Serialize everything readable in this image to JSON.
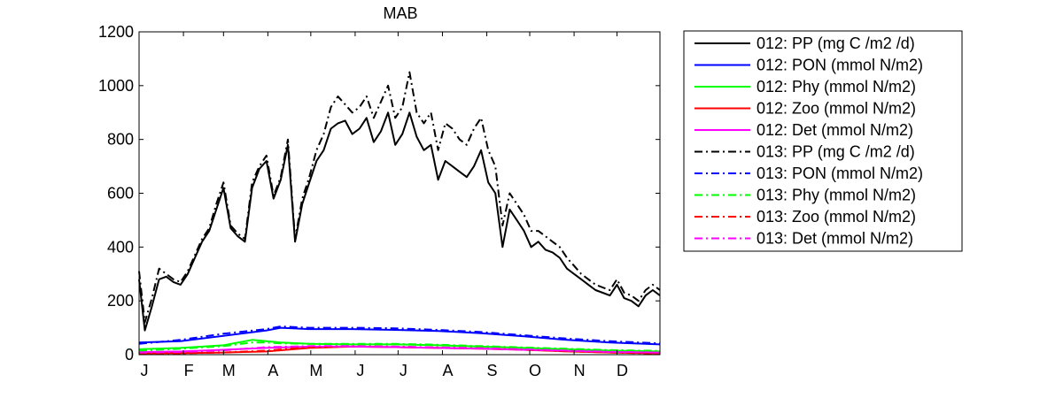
{
  "chart_data": {
    "type": "line",
    "title": "MAB",
    "xlabel": "",
    "ylabel": "",
    "ylim": [
      0,
      1200
    ],
    "yticks": [
      0,
      200,
      400,
      600,
      800,
      1000,
      1200
    ],
    "xlim": [
      1,
      365
    ],
    "month_labels": [
      "J",
      "F",
      "M",
      "A",
      "M",
      "J",
      "J",
      "A",
      "S",
      "O",
      "N",
      "D"
    ],
    "month_starts": [
      1,
      32,
      60,
      91,
      121,
      152,
      182,
      213,
      244,
      274,
      305,
      335
    ],
    "grid": false,
    "legend_position": "outside-right",
    "series": [
      {
        "name": "012: PP (mg C /m2 /d)",
        "color": "#000000",
        "style": "solid",
        "x": [
          1,
          5,
          10,
          15,
          20,
          25,
          30,
          35,
          40,
          45,
          50,
          55,
          60,
          65,
          70,
          75,
          80,
          85,
          90,
          95,
          100,
          105,
          110,
          115,
          120,
          125,
          130,
          135,
          140,
          145,
          150,
          155,
          160,
          165,
          170,
          175,
          180,
          185,
          190,
          195,
          200,
          205,
          210,
          215,
          220,
          225,
          230,
          235,
          240,
          245,
          250,
          255,
          260,
          265,
          270,
          275,
          280,
          285,
          290,
          295,
          300,
          305,
          310,
          315,
          320,
          325,
          330,
          335,
          340,
          345,
          350,
          355,
          360,
          365
        ],
        "y": [
          280,
          90,
          180,
          280,
          290,
          270,
          260,
          300,
          360,
          420,
          460,
          540,
          620,
          470,
          440,
          420,
          620,
          690,
          720,
          580,
          650,
          780,
          420,
          560,
          640,
          720,
          760,
          840,
          860,
          870,
          820,
          840,
          880,
          790,
          830,
          900,
          780,
          820,
          900,
          810,
          760,
          780,
          650,
          720,
          700,
          680,
          660,
          700,
          760,
          640,
          600,
          400,
          540,
          500,
          460,
          400,
          420,
          390,
          380,
          360,
          320,
          300,
          280,
          260,
          240,
          230,
          220,
          260,
          210,
          200,
          180,
          220,
          240,
          220
        ]
      },
      {
        "name": "012: PON (mmol N/m2)",
        "color": "#0000ff",
        "style": "solid",
        "x": [
          1,
          30,
          60,
          90,
          100,
          120,
          150,
          180,
          210,
          240,
          270,
          300,
          330,
          365
        ],
        "y": [
          45,
          50,
          70,
          90,
          100,
          95,
          95,
          92,
          88,
          80,
          68,
          55,
          45,
          38
        ]
      },
      {
        "name": "012: Phy (mmol N/m2)",
        "color": "#00ff00",
        "style": "solid",
        "x": [
          1,
          30,
          60,
          80,
          90,
          100,
          120,
          150,
          180,
          210,
          240,
          270,
          300,
          330,
          365
        ],
        "y": [
          20,
          25,
          35,
          55,
          50,
          45,
          40,
          38,
          38,
          35,
          30,
          25,
          20,
          15,
          12
        ]
      },
      {
        "name": "012: Zoo (mmol N/m2)",
        "color": "#ff0000",
        "style": "solid",
        "x": [
          1,
          30,
          60,
          90,
          120,
          150,
          180,
          210,
          240,
          270,
          300,
          330,
          365
        ],
        "y": [
          5,
          6,
          8,
          12,
          25,
          30,
          28,
          25,
          22,
          18,
          12,
          8,
          5
        ]
      },
      {
        "name": "012: Det (mmol N/m2)",
        "color": "#ff00ff",
        "style": "solid",
        "x": [
          1,
          30,
          60,
          90,
          120,
          150,
          180,
          210,
          240,
          270,
          300,
          330,
          365
        ],
        "y": [
          10,
          12,
          18,
          25,
          30,
          30,
          28,
          25,
          22,
          18,
          14,
          10,
          8
        ]
      },
      {
        "name": "013: PP (mg C /m2 /d)",
        "color": "#000000",
        "style": "dashdot",
        "x": [
          1,
          5,
          10,
          15,
          20,
          25,
          30,
          35,
          40,
          45,
          50,
          55,
          60,
          65,
          70,
          75,
          80,
          85,
          90,
          95,
          100,
          105,
          110,
          115,
          120,
          125,
          130,
          135,
          140,
          145,
          150,
          155,
          160,
          165,
          170,
          175,
          180,
          185,
          190,
          195,
          200,
          205,
          210,
          215,
          220,
          225,
          230,
          235,
          240,
          245,
          250,
          255,
          260,
          265,
          270,
          275,
          280,
          285,
          290,
          295,
          300,
          305,
          310,
          315,
          320,
          325,
          330,
          335,
          340,
          345,
          350,
          355,
          360,
          365
        ],
        "y": [
          310,
          120,
          210,
          320,
          300,
          280,
          270,
          310,
          370,
          430,
          470,
          560,
          640,
          480,
          450,
          430,
          640,
          700,
          740,
          590,
          660,
          800,
          430,
          580,
          660,
          760,
          820,
          920,
          960,
          930,
          900,
          920,
          960,
          880,
          940,
          1000,
          880,
          920,
          1050,
          900,
          860,
          900,
          760,
          860,
          840,
          800,
          780,
          840,
          880,
          760,
          700,
          480,
          600,
          560,
          520,
          460,
          460,
          440,
          420,
          400,
          360,
          330,
          300,
          280,
          260,
          250,
          240,
          280,
          230,
          220,
          200,
          240,
          260,
          240
        ]
      },
      {
        "name": "013: PON (mmol N/m2)",
        "color": "#0000ff",
        "style": "dashdot",
        "x": [
          1,
          30,
          60,
          90,
          100,
          120,
          150,
          180,
          210,
          240,
          270,
          300,
          330,
          365
        ],
        "y": [
          40,
          55,
          78,
          95,
          105,
          100,
          100,
          98,
          92,
          84,
          72,
          60,
          50,
          42
        ]
      },
      {
        "name": "013: Phy (mmol N/m2)",
        "color": "#00ff00",
        "style": "dashdot",
        "x": [
          1,
          30,
          60,
          80,
          90,
          100,
          120,
          150,
          180,
          210,
          240,
          270,
          300,
          330,
          365
        ],
        "y": [
          15,
          22,
          32,
          45,
          45,
          42,
          40,
          40,
          40,
          37,
          32,
          27,
          22,
          17,
          14
        ]
      },
      {
        "name": "013: Zoo (mmol N/m2)",
        "color": "#ff0000",
        "style": "dashdot",
        "x": [
          1,
          30,
          60,
          90,
          120,
          150,
          180,
          210,
          240,
          270,
          300,
          330,
          365
        ],
        "y": [
          3,
          5,
          8,
          15,
          28,
          32,
          30,
          27,
          24,
          19,
          13,
          8,
          4
        ]
      },
      {
        "name": "013: Det (mmol N/m2)",
        "color": "#ff00ff",
        "style": "dashdot",
        "x": [
          1,
          30,
          60,
          90,
          120,
          150,
          180,
          210,
          240,
          270,
          300,
          330,
          365
        ],
        "y": [
          8,
          10,
          16,
          28,
          32,
          32,
          30,
          27,
          24,
          20,
          15,
          11,
          8
        ]
      }
    ]
  }
}
